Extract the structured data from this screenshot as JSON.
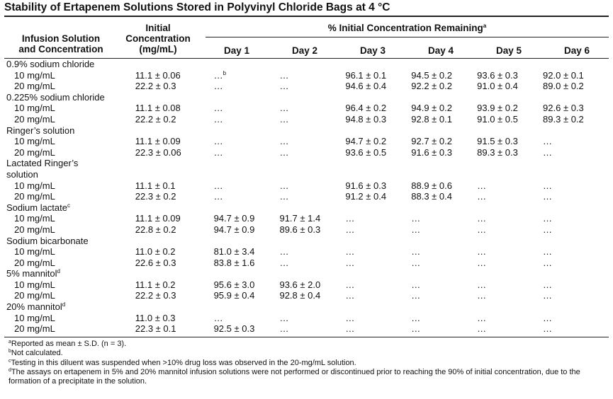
{
  "title": "Stability of Ertapenem Solutions Stored in Polyvinyl Chloride Bags at 4 °C",
  "headers": {
    "col1_line1": "Infusion Solution",
    "col1_line2": "and Concentration",
    "col2_line1": "Initial",
    "col2_line2": "Concentration",
    "col2_line3": "(mg/mL)",
    "pct": "% Initial Concentration Remaining",
    "pct_note": "a",
    "days": [
      "Day 1",
      "Day 2",
      "Day 3",
      "Day 4",
      "Day 5",
      "Day 6"
    ]
  },
  "groups": [
    {
      "name": "0.9% sodium chloride",
      "note": "",
      "rows": [
        {
          "label": "10 mg/mL",
          "initial": "11.1 ± 0.06",
          "days": [
            "…",
            "…",
            "96.1 ± 0.1",
            "94.5 ± 0.2",
            "93.6 ± 0.3",
            "92.0 ± 0.1"
          ],
          "d1_note": "b"
        },
        {
          "label": "20 mg/mL",
          "initial": "22.2 ± 0.3",
          "days": [
            "…",
            "…",
            "94.6 ± 0.4",
            "92.2 ± 0.2",
            "91.0 ± 0.4",
            "89.0 ± 0.2"
          ]
        }
      ]
    },
    {
      "name": "0.225% sodium chloride",
      "note": "",
      "rows": [
        {
          "label": "10 mg/mL",
          "initial": "11.1 ± 0.08",
          "days": [
            "…",
            "…",
            "96.4 ± 0.2",
            "94.9 ± 0.2",
            "93.9 ± 0.2",
            "92.6 ± 0.3"
          ]
        },
        {
          "label": "20 mg/mL",
          "initial": "22.2 ± 0.2",
          "days": [
            "…",
            "…",
            "94.8 ± 0.3",
            "92.8 ± 0.1",
            "91.0 ± 0.5",
            "89.3 ± 0.2"
          ]
        }
      ]
    },
    {
      "name": "Ringer’s solution",
      "note": "",
      "rows": [
        {
          "label": "10 mg/mL",
          "initial": "11.1 ± 0.09",
          "days": [
            "…",
            "…",
            "94.7 ± 0.2",
            "92.7 ± 0.2",
            "91.5 ± 0.3",
            "…"
          ]
        },
        {
          "label": "20 mg/mL",
          "initial": "22.3 ± 0.06",
          "days": [
            "…",
            "…",
            "93.6 ± 0.5",
            "91.6 ± 0.3",
            "89.3 ± 0.3",
            "…"
          ]
        }
      ]
    },
    {
      "name": "Lactated Ringer’s",
      "name2": "solution",
      "note": "",
      "rows": [
        {
          "label": "10 mg/mL",
          "initial": "11.1 ± 0.1",
          "days": [
            "…",
            "…",
            "91.6 ± 0.3",
            "88.9 ± 0.6",
            "…",
            "…"
          ]
        },
        {
          "label": "20 mg/mL",
          "initial": "22.3 ± 0.2",
          "days": [
            "…",
            "…",
            "91.2 ± 0.4",
            "88.3 ± 0.4",
            "…",
            "…"
          ]
        }
      ]
    },
    {
      "name": "Sodium lactate",
      "note": "c",
      "rows": [
        {
          "label": "10 mg/mL",
          "initial": "11.1 ± 0.09",
          "days": [
            "94.7 ± 0.9",
            "91.7 ± 1.4",
            "…",
            "…",
            "…",
            "…"
          ]
        },
        {
          "label": "20 mg/mL",
          "initial": "22.8 ± 0.2",
          "days": [
            "94.7 ± 0.9",
            "89.6 ± 0.3",
            "…",
            "…",
            "…",
            "…"
          ]
        }
      ]
    },
    {
      "name": "Sodium bicarbonate",
      "note": "",
      "rows": [
        {
          "label": "10 mg/mL",
          "initial": "11.0 ± 0.2",
          "days": [
            "81.0 ± 3.4",
            "…",
            "…",
            "…",
            "…",
            "…"
          ]
        },
        {
          "label": "20 mg/mL",
          "initial": "22.6 ± 0.3",
          "days": [
            "83.8 ± 1.6",
            "…",
            "…",
            "…",
            "…",
            "…"
          ]
        }
      ]
    },
    {
      "name": "5% mannitol",
      "note": "d",
      "rows": [
        {
          "label": "10 mg/mL",
          "initial": "11.1 ± 0.2",
          "days": [
            "95.6 ± 3.0",
            "93.6 ± 2.0",
            "…",
            "…",
            "…",
            "…"
          ]
        },
        {
          "label": "20 mg/mL",
          "initial": "22.2 ± 0.3",
          "days": [
            "95.9 ± 0.4",
            "92.8 ± 0.4",
            "…",
            "…",
            "…",
            "…"
          ]
        }
      ]
    },
    {
      "name": "20% mannitol",
      "note": "d",
      "rows": [
        {
          "label": "10 mg/mL",
          "initial": "11.0 ± 0.3",
          "days": [
            "…",
            "…",
            "…",
            "…",
            "…",
            "…"
          ]
        },
        {
          "label": "20 mg/mL",
          "initial": "22.3 ± 0.1",
          "days": [
            "92.5 ± 0.3",
            "…",
            "…",
            "…",
            "…",
            "…"
          ]
        }
      ]
    }
  ],
  "footnotes": [
    {
      "mark": "a",
      "text": "Reported as mean ± S.D. (n = 3)."
    },
    {
      "mark": "b",
      "text": "Not calculated."
    },
    {
      "mark": "c",
      "text": "Testing in this diluent was suspended when >10% drug loss was observed in the 20-mg/mL solution."
    },
    {
      "mark": "d",
      "text": "The assays on ertapenem in 5% and 20% mannitol infusion solutions were not performed or discontinued prior to reaching the 90% of initial concentration, due to the"
    },
    {
      "mark": "",
      "text": "formation of a precipitate in the solution."
    }
  ]
}
